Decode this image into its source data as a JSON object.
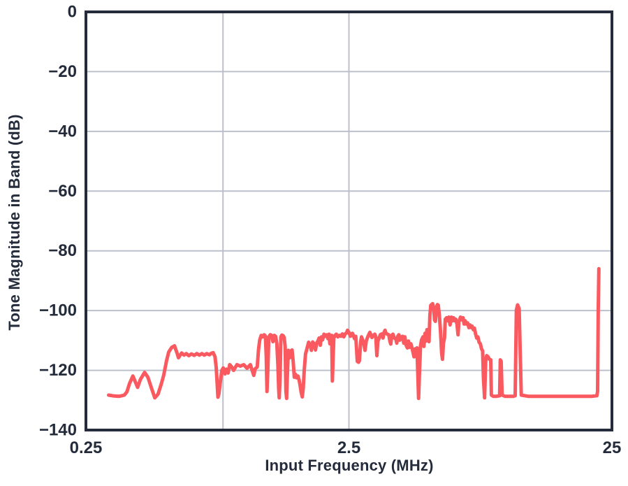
{
  "colors": {
    "line": "#F9595F",
    "axis": "#242B3A",
    "grid": "#BCC0CB",
    "text": "#242B3A",
    "background": "#FFFFFF"
  },
  "chart_data": {
    "type": "line",
    "title": "",
    "xlabel": "Input Frequency (MHz)",
    "ylabel": "Tone Magnitude in Band (dB)",
    "x_scale": "log",
    "xlim": [
      0.25,
      25
    ],
    "ylim": [
      -140,
      0
    ],
    "grid": true,
    "legend": "none",
    "x_ticks": [
      {
        "value": 0.25,
        "label": "0.25"
      },
      {
        "value": 2.5,
        "label": "2.5"
      },
      {
        "value": 25,
        "label": "25"
      }
    ],
    "y_ticks": [
      {
        "value": 0,
        "label": "0"
      },
      {
        "value": -20,
        "label": "−20"
      },
      {
        "value": -40,
        "label": "−40"
      },
      {
        "value": -60,
        "label": "−60"
      },
      {
        "value": -80,
        "label": "−80"
      },
      {
        "value": -100,
        "label": "−100"
      },
      {
        "value": -120,
        "label": "−120"
      },
      {
        "value": -140,
        "label": "−140"
      }
    ],
    "x_gridlines": [
      0.83,
      2.5
    ],
    "y_gridlines": [
      -20,
      -40,
      -60,
      -80,
      -100,
      -120
    ],
    "series": [
      {
        "name": "tone_magnitude_in_band",
        "color": "#F9595F",
        "points": [
          [
            0.305,
            -128.3
          ],
          [
            0.32,
            -128.6
          ],
          [
            0.335,
            -128.7
          ],
          [
            0.35,
            -128.3
          ],
          [
            0.358,
            -127.2
          ],
          [
            0.366,
            -124.5
          ],
          [
            0.377,
            -121.9
          ],
          [
            0.385,
            -123.8
          ],
          [
            0.393,
            -125.7
          ],
          [
            0.403,
            -123.0
          ],
          [
            0.418,
            -120.7
          ],
          [
            0.43,
            -122.3
          ],
          [
            0.444,
            -126.0
          ],
          [
            0.457,
            -129.2
          ],
          [
            0.47,
            -128.0
          ],
          [
            0.484,
            -124.5
          ],
          [
            0.494,
            -121.6
          ],
          [
            0.506,
            -116.9
          ],
          [
            0.516,
            -113.9
          ],
          [
            0.53,
            -112.3
          ],
          [
            0.543,
            -111.8
          ],
          [
            0.556,
            -114.4
          ],
          [
            0.562,
            -115.8
          ],
          [
            0.578,
            -114.2
          ],
          [
            0.59,
            -114.9
          ],
          [
            0.602,
            -114.4
          ],
          [
            0.615,
            -115.1
          ],
          [
            0.63,
            -114.5
          ],
          [
            0.645,
            -115.0
          ],
          [
            0.66,
            -114.4
          ],
          [
            0.675,
            -114.9
          ],
          [
            0.69,
            -114.4
          ],
          [
            0.705,
            -114.9
          ],
          [
            0.72,
            -114.4
          ],
          [
            0.737,
            -114.8
          ],
          [
            0.75,
            -114.3
          ],
          [
            0.762,
            -114.1
          ],
          [
            0.774,
            -115.5
          ],
          [
            0.782,
            -119.0
          ],
          [
            0.789,
            -124.5
          ],
          [
            0.794,
            -129.0
          ],
          [
            0.801,
            -127.8
          ],
          [
            0.81,
            -124.3
          ],
          [
            0.822,
            -120.0
          ],
          [
            0.832,
            -119.2
          ],
          [
            0.845,
            -121.2
          ],
          [
            0.855,
            -119.6
          ],
          [
            0.868,
            -120.9
          ],
          [
            0.88,
            -118.1
          ],
          [
            0.895,
            -118.8
          ],
          [
            0.911,
            -120.0
          ],
          [
            0.938,
            -118.1
          ],
          [
            0.966,
            -118.6
          ],
          [
            0.995,
            -118.1
          ],
          [
            1.024,
            -119.3
          ],
          [
            1.055,
            -118.1
          ],
          [
            1.087,
            -121.7
          ],
          [
            1.1,
            -119.5
          ],
          [
            1.12,
            -118.9
          ],
          [
            1.133,
            -113.0
          ],
          [
            1.145,
            -109.9
          ],
          [
            1.16,
            -108.3
          ],
          [
            1.175,
            -108.8
          ],
          [
            1.19,
            -108.1
          ],
          [
            1.203,
            -108.5
          ],
          [
            1.212,
            -115.0
          ],
          [
            1.22,
            -127.1
          ],
          [
            1.229,
            -120.0
          ],
          [
            1.24,
            -108.8
          ],
          [
            1.255,
            -108.1
          ],
          [
            1.27,
            -108.3
          ],
          [
            1.285,
            -110.4
          ],
          [
            1.3,
            -108.3
          ],
          [
            1.315,
            -108.6
          ],
          [
            1.33,
            -111.0
          ],
          [
            1.342,
            -118.0
          ],
          [
            1.352,
            -126.5
          ],
          [
            1.358,
            -129.2
          ],
          [
            1.368,
            -123.0
          ],
          [
            1.378,
            -108.8
          ],
          [
            1.39,
            -108.2
          ],
          [
            1.405,
            -108.4
          ],
          [
            1.418,
            -109.0
          ],
          [
            1.43,
            -112.0
          ],
          [
            1.44,
            -127.0
          ],
          [
            1.449,
            -129.4
          ],
          [
            1.458,
            -122.0
          ],
          [
            1.47,
            -113.3
          ],
          [
            1.488,
            -115.8
          ],
          [
            1.505,
            -113.5
          ],
          [
            1.52,
            -113.2
          ],
          [
            1.535,
            -117.0
          ],
          [
            1.55,
            -122.3
          ],
          [
            1.565,
            -121.3
          ],
          [
            1.581,
            -122.5
          ],
          [
            1.6,
            -121.9
          ],
          [
            1.615,
            -123.2
          ],
          [
            1.63,
            -125.0
          ],
          [
            1.645,
            -127.3
          ],
          [
            1.662,
            -128.9
          ],
          [
            1.676,
            -126.0
          ],
          [
            1.69,
            -120.0
          ],
          [
            1.71,
            -114.5
          ],
          [
            1.73,
            -112.9
          ],
          [
            1.757,
            -110.6
          ],
          [
            1.78,
            -111.5
          ],
          [
            1.8,
            -113.3
          ],
          [
            1.82,
            -110.5
          ],
          [
            1.845,
            -111.2
          ],
          [
            1.865,
            -113.2
          ],
          [
            1.885,
            -110.9
          ],
          [
            1.905,
            -110.2
          ],
          [
            1.925,
            -109.2
          ],
          [
            1.945,
            -111.6
          ],
          [
            1.965,
            -108.8
          ],
          [
            1.985,
            -109.8
          ],
          [
            2.01,
            -107.9
          ],
          [
            2.03,
            -108.6
          ],
          [
            2.06,
            -108.1
          ],
          [
            2.08,
            -109.4
          ],
          [
            2.1,
            -107.9
          ],
          [
            2.115,
            -111.1
          ],
          [
            2.13,
            -109.2
          ],
          [
            2.15,
            -108.3
          ],
          [
            2.163,
            -123.6
          ],
          [
            2.178,
            -115.0
          ],
          [
            2.19,
            -109.2
          ],
          [
            2.214,
            -108.3
          ],
          [
            2.24,
            -107.9
          ],
          [
            2.27,
            -108.8
          ],
          [
            2.3,
            -108.3
          ],
          [
            2.33,
            -108.6
          ],
          [
            2.36,
            -107.8
          ],
          [
            2.39,
            -108.8
          ],
          [
            2.42,
            -107.8
          ],
          [
            2.445,
            -107.5
          ],
          [
            2.47,
            -106.6
          ],
          [
            2.5,
            -107.3
          ],
          [
            2.53,
            -108.6
          ],
          [
            2.555,
            -107.9
          ],
          [
            2.578,
            -107.6
          ],
          [
            2.6,
            -108.3
          ],
          [
            2.625,
            -109.4
          ],
          [
            2.655,
            -108.6
          ],
          [
            2.69,
            -117.0
          ],
          [
            2.72,
            -117.3
          ],
          [
            2.74,
            -116.8
          ],
          [
            2.77,
            -110.5
          ],
          [
            2.791,
            -108.8
          ],
          [
            2.82,
            -109.9
          ],
          [
            2.85,
            -111.2
          ],
          [
            2.877,
            -113.3
          ],
          [
            2.91,
            -110.2
          ],
          [
            2.948,
            -108.8
          ],
          [
            2.98,
            -107.9
          ],
          [
            3.003,
            -107.3
          ],
          [
            3.03,
            -108.1
          ],
          [
            3.058,
            -109.0
          ],
          [
            3.1,
            -108.3
          ],
          [
            3.134,
            -107.9
          ],
          [
            3.163,
            -108.8
          ],
          [
            3.192,
            -115.1
          ],
          [
            3.22,
            -110.3
          ],
          [
            3.251,
            -109.4
          ],
          [
            3.29,
            -108.1
          ],
          [
            3.332,
            -107.8
          ],
          [
            3.37,
            -109.2
          ],
          [
            3.4,
            -107.3
          ],
          [
            3.43,
            -106.6
          ],
          [
            3.456,
            -107.5
          ],
          [
            3.5,
            -107.9
          ],
          [
            3.542,
            -108.1
          ],
          [
            3.58,
            -110.3
          ],
          [
            3.607,
            -111.2
          ],
          [
            3.64,
            -108.3
          ],
          [
            3.674,
            -107.9
          ],
          [
            3.72,
            -109.2
          ],
          [
            3.765,
            -109.4
          ],
          [
            3.8,
            -110.9
          ],
          [
            3.834,
            -108.6
          ],
          [
            3.87,
            -108.1
          ],
          [
            3.905,
            -109.9
          ],
          [
            3.95,
            -108.8
          ],
          [
            4.002,
            -108.6
          ],
          [
            4.04,
            -110.9
          ],
          [
            4.08,
            -108.8
          ],
          [
            4.12,
            -111.5
          ],
          [
            4.17,
            -112.5
          ],
          [
            4.21,
            -110.2
          ],
          [
            4.25,
            -112.3
          ],
          [
            4.3,
            -111.1
          ],
          [
            4.35,
            -112.8
          ],
          [
            4.42,
            -115.5
          ],
          [
            4.46,
            -112.8
          ],
          [
            4.5,
            -114.8
          ],
          [
            4.535,
            -112.5
          ],
          [
            4.57,
            -121.0
          ],
          [
            4.6,
            -129.4
          ],
          [
            4.63,
            -122.0
          ],
          [
            4.68,
            -111.8
          ],
          [
            4.72,
            -109.9
          ],
          [
            4.78,
            -108.8
          ],
          [
            4.82,
            -112.0
          ],
          [
            4.87,
            -107.6
          ],
          [
            4.91,
            -110.2
          ],
          [
            4.95,
            -106.4
          ],
          [
            5.0,
            -109.7
          ],
          [
            5.04,
            -110.4
          ],
          [
            5.08,
            -101.7
          ],
          [
            5.12,
            -98.2
          ],
          [
            5.2,
            -97.7
          ],
          [
            5.25,
            -98.9
          ],
          [
            5.29,
            -103.2
          ],
          [
            5.33,
            -103.6
          ],
          [
            5.38,
            -99.1
          ],
          [
            5.42,
            -98.0
          ],
          [
            5.465,
            -98.2
          ],
          [
            5.52,
            -101.7
          ],
          [
            5.575,
            -107.0
          ],
          [
            5.63,
            -114.1
          ],
          [
            5.67,
            -116.3
          ],
          [
            5.72,
            -110.9
          ],
          [
            5.77,
            -109.2
          ],
          [
            5.81,
            -102.9
          ],
          [
            5.88,
            -102.4
          ],
          [
            5.94,
            -103.4
          ],
          [
            6.0,
            -102.2
          ],
          [
            6.06,
            -104.8
          ],
          [
            6.13,
            -102.2
          ],
          [
            6.19,
            -103.4
          ],
          [
            6.25,
            -102.4
          ],
          [
            6.31,
            -103.4
          ],
          [
            6.37,
            -102.9
          ],
          [
            6.44,
            -104.5
          ],
          [
            6.5,
            -108.1
          ],
          [
            6.545,
            -103.9
          ],
          [
            6.64,
            -102.2
          ],
          [
            6.72,
            -103.1
          ],
          [
            6.79,
            -102.4
          ],
          [
            6.85,
            -104.5
          ],
          [
            6.92,
            -103.4
          ],
          [
            6.99,
            -104.5
          ],
          [
            7.06,
            -104.1
          ],
          [
            7.15,
            -105.7
          ],
          [
            7.21,
            -104.8
          ],
          [
            7.28,
            -105.7
          ],
          [
            7.35,
            -105.2
          ],
          [
            7.43,
            -106.4
          ],
          [
            7.5,
            -105.9
          ],
          [
            7.58,
            -107.9
          ],
          [
            7.65,
            -109.2
          ],
          [
            7.73,
            -108.8
          ],
          [
            7.81,
            -110.6
          ],
          [
            7.9,
            -111.1
          ],
          [
            7.98,
            -112.8
          ],
          [
            8.06,
            -113.5
          ],
          [
            8.12,
            -122.9
          ],
          [
            8.2,
            -129.2
          ],
          [
            8.28,
            -117.0
          ],
          [
            8.35,
            -115.1
          ],
          [
            8.45,
            -115.5
          ],
          [
            8.55,
            -116.3
          ],
          [
            8.65,
            -116.5
          ],
          [
            8.7,
            -128.3
          ],
          [
            8.85,
            -128.7
          ],
          [
            9.1,
            -128.7
          ],
          [
            9.35,
            -128.5
          ],
          [
            9.41,
            -116.5
          ],
          [
            9.48,
            -117.0
          ],
          [
            9.56,
            -128.3
          ],
          [
            9.8,
            -128.7
          ],
          [
            10.2,
            -128.7
          ],
          [
            10.55,
            -128.7
          ],
          [
            10.72,
            -128.5
          ],
          [
            10.83,
            -99.8
          ],
          [
            10.95,
            -98.1
          ],
          [
            11.1,
            -99.4
          ],
          [
            11.3,
            -128.3
          ],
          [
            12.0,
            -128.7
          ],
          [
            13.5,
            -128.7
          ],
          [
            15.0,
            -128.7
          ],
          [
            16.5,
            -128.7
          ],
          [
            18.0,
            -128.7
          ],
          [
            19.5,
            -128.7
          ],
          [
            21.0,
            -128.7
          ],
          [
            21.9,
            -128.5
          ],
          [
            22.05,
            -127.0
          ],
          [
            22.18,
            -100.0
          ],
          [
            22.3,
            -86.0
          ]
        ]
      }
    ]
  }
}
